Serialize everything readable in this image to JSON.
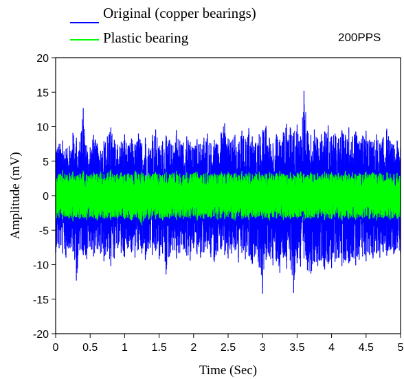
{
  "chart_data": {
    "type": "line",
    "title": "",
    "annotation": "200PPS",
    "xlabel": "Time (Sec)",
    "ylabel": "Amplitude (mV)",
    "xlim": [
      0,
      5
    ],
    "ylim": [
      -20,
      20
    ],
    "xticks": [
      0,
      0.5,
      1,
      1.5,
      2,
      2.5,
      3,
      3.5,
      4,
      4.5,
      5
    ],
    "xtick_labels": [
      "0",
      "0.5",
      "1",
      "1.5",
      "2",
      "2.5",
      "3",
      "3.5",
      "4",
      "4.5",
      "5"
    ],
    "yticks": [
      20,
      15,
      10,
      5,
      0,
      -5,
      -10,
      -15,
      -20
    ],
    "ytick_labels": [
      "20",
      "15",
      "10",
      "5",
      "0",
      "-5",
      "-10",
      "-15",
      "-20"
    ],
    "grid": false,
    "legend_position": "top-left, above plot",
    "series": [
      {
        "name": "Original (copper bearings)",
        "color": "#0000ff",
        "envelope": {
          "x": [
            0,
            0.05,
            0.1,
            0.15,
            0.2,
            0.25,
            0.3,
            0.35,
            0.4,
            0.45,
            0.5,
            0.55,
            0.6,
            0.65,
            0.7,
            0.75,
            0.8,
            0.85,
            0.9,
            0.95,
            1.0,
            1.05,
            1.1,
            1.15,
            1.2,
            1.25,
            1.3,
            1.35,
            1.4,
            1.45,
            1.5,
            1.55,
            1.6,
            1.65,
            1.7,
            1.75,
            1.8,
            1.85,
            1.9,
            1.95,
            2.0,
            2.05,
            2.1,
            2.15,
            2.2,
            2.25,
            2.3,
            2.35,
            2.4,
            2.45,
            2.5,
            2.55,
            2.6,
            2.65,
            2.7,
            2.75,
            2.8,
            2.85,
            2.9,
            2.95,
            3.0,
            3.05,
            3.1,
            3.15,
            3.2,
            3.25,
            3.3,
            3.35,
            3.4,
            3.45,
            3.5,
            3.55,
            3.6,
            3.65,
            3.7,
            3.75,
            3.8,
            3.85,
            3.9,
            3.95,
            4.0,
            4.05,
            4.1,
            4.15,
            4.2,
            4.25,
            4.3,
            4.35,
            4.4,
            4.45,
            4.5,
            4.55,
            4.6,
            4.65,
            4.7,
            4.75,
            4.8,
            4.85,
            4.9,
            4.95,
            5.0
          ],
          "max": [
            8.2,
            7.5,
            8.0,
            6.8,
            7.2,
            9.1,
            8.4,
            7.8,
            12.7,
            7.3,
            7.0,
            8.8,
            7.6,
            6.5,
            7.9,
            8.6,
            9.9,
            8.1,
            7.4,
            7.8,
            8.9,
            7.2,
            8.3,
            7.5,
            9.0,
            7.6,
            8.4,
            6.9,
            8.8,
            9.6,
            7.2,
            7.9,
            8.7,
            8.1,
            7.3,
            9.5,
            8.0,
            7.7,
            8.6,
            7.8,
            6.9,
            8.2,
            7.5,
            8.4,
            9.0,
            7.6,
            8.1,
            7.4,
            9.2,
            10.5,
            8.3,
            7.9,
            8.8,
            7.5,
            9.4,
            8.2,
            9.8,
            8.6,
            7.7,
            8.9,
            9.5,
            10.1,
            8.4,
            7.6,
            8.9,
            8.1,
            9.2,
            10.4,
            9.9,
            9.1,
            10.3,
            8.6,
            15.2,
            9.4,
            8.8,
            9.6,
            8.2,
            8.9,
            9.3,
            10.2,
            8.6,
            9.0,
            8.3,
            9.5,
            8.8,
            9.9,
            8.6,
            9.3,
            7.9,
            8.7,
            9.4,
            8.1,
            7.8,
            8.9,
            7.6,
            8.5,
            9.7,
            7.9,
            7.4,
            8.0,
            6.9
          ],
          "min": [
            -8.3,
            -7.6,
            -8.4,
            -9.0,
            -7.5,
            -8.1,
            -12.3,
            -7.9,
            -8.6,
            -9.2,
            -7.4,
            -8.8,
            -7.7,
            -8.4,
            -9.5,
            -8.1,
            -10.2,
            -9.1,
            -7.6,
            -8.3,
            -8.9,
            -7.5,
            -8.2,
            -9.0,
            -7.8,
            -8.4,
            -9.3,
            -7.7,
            -8.6,
            -8.0,
            -9.2,
            -8.4,
            -11.4,
            -8.8,
            -7.9,
            -9.1,
            -8.3,
            -7.8,
            -8.7,
            -9.4,
            -7.6,
            -8.5,
            -9.0,
            -8.2,
            -7.7,
            -8.9,
            -9.6,
            -8.1,
            -7.8,
            -8.6,
            -9.1,
            -8.4,
            -7.9,
            -9.7,
            -8.3,
            -9.2,
            -8.7,
            -9.9,
            -8.5,
            -10.4,
            -14.2,
            -9.3,
            -8.8,
            -10.1,
            -9.5,
            -11.2,
            -9.0,
            -10.6,
            -9.4,
            -14.1,
            -9.8,
            -10.3,
            -9.1,
            -10.8,
            -11.3,
            -9.6,
            -10.2,
            -9.4,
            -10.7,
            -9.9,
            -10.5,
            -9.6,
            -9.0,
            -10.2,
            -9.4,
            -9.8,
            -8.9,
            -10.1,
            -9.3,
            -8.8,
            -9.5,
            -8.6,
            -9.1,
            -8.4,
            -9.0,
            -8.2,
            -8.7,
            -7.9,
            -8.5,
            -7.6,
            -8.4
          ]
        }
      },
      {
        "name": "Plastic bearing",
        "color": "#00ff00",
        "envelope": {
          "x": [
            0,
            0.05,
            0.1,
            0.15,
            0.2,
            0.25,
            0.3,
            0.35,
            0.4,
            0.45,
            0.5,
            0.55,
            0.6,
            0.65,
            0.7,
            0.75,
            0.8,
            0.85,
            0.9,
            0.95,
            1.0,
            1.05,
            1.1,
            1.15,
            1.2,
            1.25,
            1.3,
            1.35,
            1.4,
            1.45,
            1.5,
            1.55,
            1.6,
            1.65,
            1.7,
            1.75,
            1.8,
            1.85,
            1.9,
            1.95,
            2.0,
            2.05,
            2.1,
            2.15,
            2.2,
            2.25,
            2.3,
            2.35,
            2.4,
            2.45,
            2.5,
            2.55,
            2.6,
            2.65,
            2.7,
            2.75,
            2.8,
            2.85,
            2.9,
            2.95,
            3.0,
            3.05,
            3.1,
            3.15,
            3.2,
            3.25,
            3.3,
            3.35,
            3.4,
            3.45,
            3.5,
            3.55,
            3.6,
            3.65,
            3.7,
            3.75,
            3.8,
            3.85,
            3.9,
            3.95,
            4.0,
            4.05,
            4.1,
            4.15,
            4.2,
            4.25,
            4.3,
            4.35,
            4.4,
            4.45,
            4.5,
            4.55,
            4.6,
            4.65,
            4.7,
            4.75,
            4.8,
            4.85,
            4.9,
            4.95,
            5.0
          ],
          "max": [
            3.4,
            3.1,
            3.7,
            3.0,
            3.3,
            3.5,
            2.9,
            3.2,
            3.6,
            3.1,
            3.0,
            3.4,
            3.2,
            3.5,
            3.1,
            3.3,
            3.8,
            3.0,
            3.2,
            3.4,
            3.1,
            3.3,
            3.0,
            3.6,
            3.2,
            3.5,
            3.0,
            3.3,
            3.1,
            3.4,
            3.2,
            3.0,
            3.5,
            3.1,
            3.3,
            3.6,
            3.2,
            3.0,
            3.4,
            3.1,
            3.3,
            3.5,
            3.0,
            3.2,
            3.4,
            3.1,
            3.3,
            3.0,
            3.5,
            3.2,
            3.4,
            3.1,
            3.3,
            3.0,
            3.6,
            3.2,
            3.4,
            3.1,
            3.3,
            3.5,
            3.0,
            3.2,
            3.4,
            3.1,
            3.3,
            3.6,
            3.2,
            3.0,
            3.4,
            3.1,
            3.3,
            3.5,
            3.2,
            3.0,
            3.4,
            3.1,
            3.3,
            3.0,
            3.5,
            3.2,
            3.4,
            3.1,
            3.3,
            3.0,
            3.6,
            3.2,
            3.4,
            3.1,
            3.3,
            3.0,
            3.5,
            3.2,
            3.4,
            3.1,
            3.3,
            3.0,
            3.4,
            3.2,
            3.1,
            3.3,
            3.0
          ],
          "min": [
            -3.6,
            -3.2,
            -3.4,
            -3.0,
            -3.3,
            -3.7,
            -3.1,
            -3.4,
            -3.2,
            -3.5,
            -3.0,
            -3.3,
            -3.6,
            -3.1,
            -3.4,
            -3.2,
            -3.5,
            -3.1,
            -3.3,
            -3.0,
            -3.4,
            -3.2,
            -3.6,
            -3.1,
            -3.3,
            -4.3,
            -3.2,
            -3.5,
            -3.0,
            -3.4,
            -3.2,
            -3.6,
            -3.1,
            -3.3,
            -3.0,
            -3.5,
            -3.2,
            -3.4,
            -3.1,
            -3.3,
            -3.0,
            -3.6,
            -3.2,
            -3.4,
            -3.1,
            -3.3,
            -3.0,
            -3.5,
            -3.2,
            -3.4,
            -3.1,
            -3.3,
            -3.6,
            -3.0,
            -3.4,
            -3.2,
            -3.5,
            -3.1,
            -3.3,
            -3.0,
            -3.4,
            -3.2,
            -3.6,
            -3.1,
            -3.3,
            -3.0,
            -3.5,
            -3.2,
            -3.4,
            -3.1,
            -3.3,
            -3.0,
            -3.6,
            -3.2,
            -3.4,
            -3.1,
            -3.3,
            -3.0,
            -3.5,
            -3.2,
            -3.4,
            -3.1,
            -3.3,
            -3.6,
            -3.0,
            -3.4,
            -3.2,
            -3.5,
            -3.1,
            -3.3,
            -3.0,
            -3.4,
            -3.2,
            -3.6,
            -3.1,
            -3.3,
            -3.0,
            -3.5,
            -3.2,
            -3.4,
            -3.1
          ]
        }
      }
    ]
  }
}
